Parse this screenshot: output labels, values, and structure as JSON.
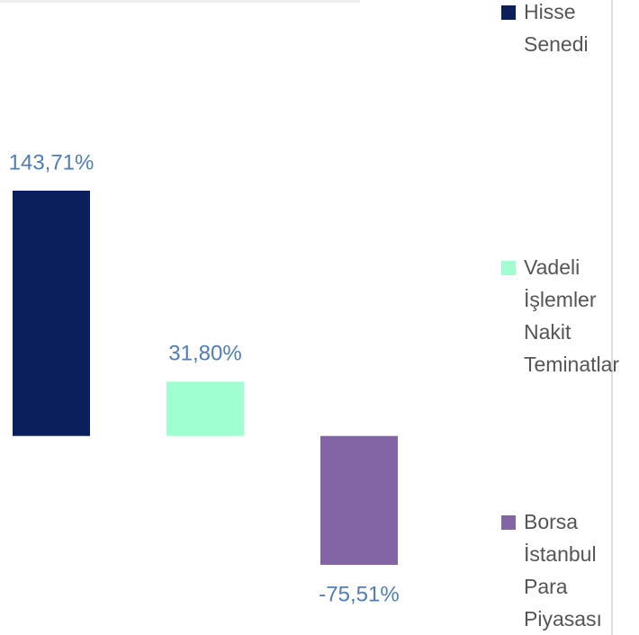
{
  "chart_data": {
    "type": "bar",
    "categories": [
      "Hisse Senedi",
      "Vadeli İşlemler Nakit Teminatlar",
      "Borsa İstanbul Para Piyasası"
    ],
    "values": [
      143.71,
      31.8,
      -75.51
    ],
    "value_labels": [
      "143,71%",
      "31,80%",
      "-75,51%"
    ],
    "colors": [
      "#0b1f5c",
      "#9fffd0",
      "#8364a4"
    ],
    "legend": "right"
  }
}
